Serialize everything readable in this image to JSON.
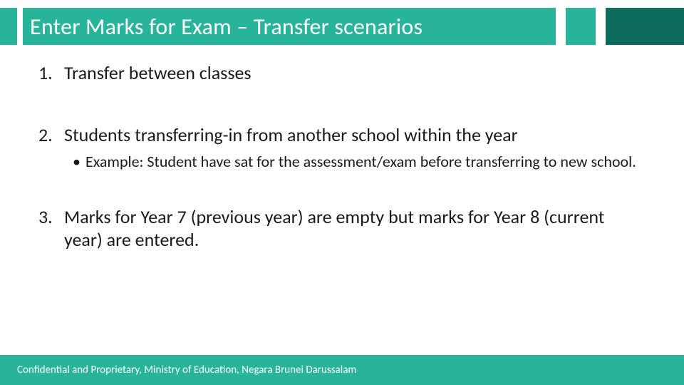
{
  "colors": {
    "primary": "#28b49a",
    "accent_dark": "#0d6c5b",
    "background": "#ffffff",
    "text": "#1a1a1a",
    "title_text": "#ffffff",
    "footer_text": "#ffffff"
  },
  "title": "Enter Marks for Exam – Transfer scenarios",
  "items": [
    {
      "num": "1.",
      "text": "Transfer between classes",
      "sub": null
    },
    {
      "num": "2.",
      "text": "Students transferring-in from another school within the year",
      "sub": {
        "bullet": "•",
        "text": "Example: Student have sat for the assessment/exam before transferring to new school."
      }
    },
    {
      "num": "3.",
      "text": "Marks for Year 7 (previous year) are empty but marks for Year 8 (current year) are entered.",
      "sub": null
    }
  ],
  "footer": "Confidential and Proprietary, Ministry of Education, Negara Brunei Darussalam"
}
